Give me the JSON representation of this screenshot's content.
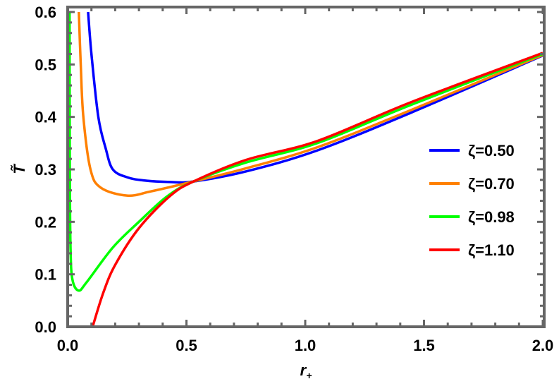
{
  "chart_data": {
    "type": "line",
    "title": "",
    "xlabel": "r",
    "xlabel_subscript": "+",
    "ylabel": "T̃",
    "xlim": [
      0,
      2.0
    ],
    "ylim": [
      0,
      0.6
    ],
    "x_ticks": [
      "0.0",
      "0.5",
      "1.0",
      "1.5",
      "2.0"
    ],
    "y_ticks": [
      "0.0",
      "0.1",
      "0.2",
      "0.3",
      "0.4",
      "0.5",
      "0.6"
    ],
    "grid": false,
    "legend_placement": "right",
    "frame_color": "#666666",
    "series": [
      {
        "name": "ζ=0.50",
        "color": "#0000FF",
        "points": [
          [
            0.086,
            0.6
          ],
          [
            0.1,
            0.52
          ],
          [
            0.129,
            0.4
          ],
          [
            0.16,
            0.34
          ],
          [
            0.19,
            0.3
          ],
          [
            0.25,
            0.285
          ],
          [
            0.32,
            0.279
          ],
          [
            0.43,
            0.276
          ],
          [
            0.53,
            0.277
          ],
          [
            0.75,
            0.296
          ],
          [
            1.05,
            0.336
          ],
          [
            1.445,
            0.408
          ],
          [
            2.0,
            0.517
          ]
        ]
      },
      {
        "name": "ζ=0.70",
        "color": "#FF8000",
        "points": [
          [
            0.047,
            0.6
          ],
          [
            0.055,
            0.5
          ],
          [
            0.066,
            0.4
          ],
          [
            0.096,
            0.3
          ],
          [
            0.14,
            0.265
          ],
          [
            0.25,
            0.25
          ],
          [
            0.35,
            0.258
          ],
          [
            0.53,
            0.277
          ],
          [
            0.75,
            0.302
          ],
          [
            1.05,
            0.342
          ],
          [
            1.445,
            0.413
          ],
          [
            2.0,
            0.518
          ]
        ]
      },
      {
        "name": "ζ=0.98",
        "color": "#00FF00",
        "points": [
          [
            0.008,
            0.6
          ],
          [
            0.009,
            0.3
          ],
          [
            0.012,
            0.15
          ],
          [
            0.02,
            0.09
          ],
          [
            0.046,
            0.069
          ],
          [
            0.08,
            0.085
          ],
          [
            0.19,
            0.151
          ],
          [
            0.3,
            0.2
          ],
          [
            0.42,
            0.249
          ],
          [
            0.53,
            0.277
          ],
          [
            0.75,
            0.313
          ],
          [
            1.05,
            0.35
          ],
          [
            1.445,
            0.423
          ],
          [
            2.0,
            0.52
          ]
        ]
      },
      {
        "name": "ζ=1.10",
        "color": "#FF0000",
        "points": [
          [
            0.105,
            0.0
          ],
          [
            0.15,
            0.065
          ],
          [
            0.2,
            0.118
          ],
          [
            0.3,
            0.188
          ],
          [
            0.43,
            0.249
          ],
          [
            0.53,
            0.277
          ],
          [
            0.75,
            0.318
          ],
          [
            1.05,
            0.354
          ],
          [
            1.445,
            0.428
          ],
          [
            2.0,
            0.522
          ]
        ]
      }
    ]
  }
}
